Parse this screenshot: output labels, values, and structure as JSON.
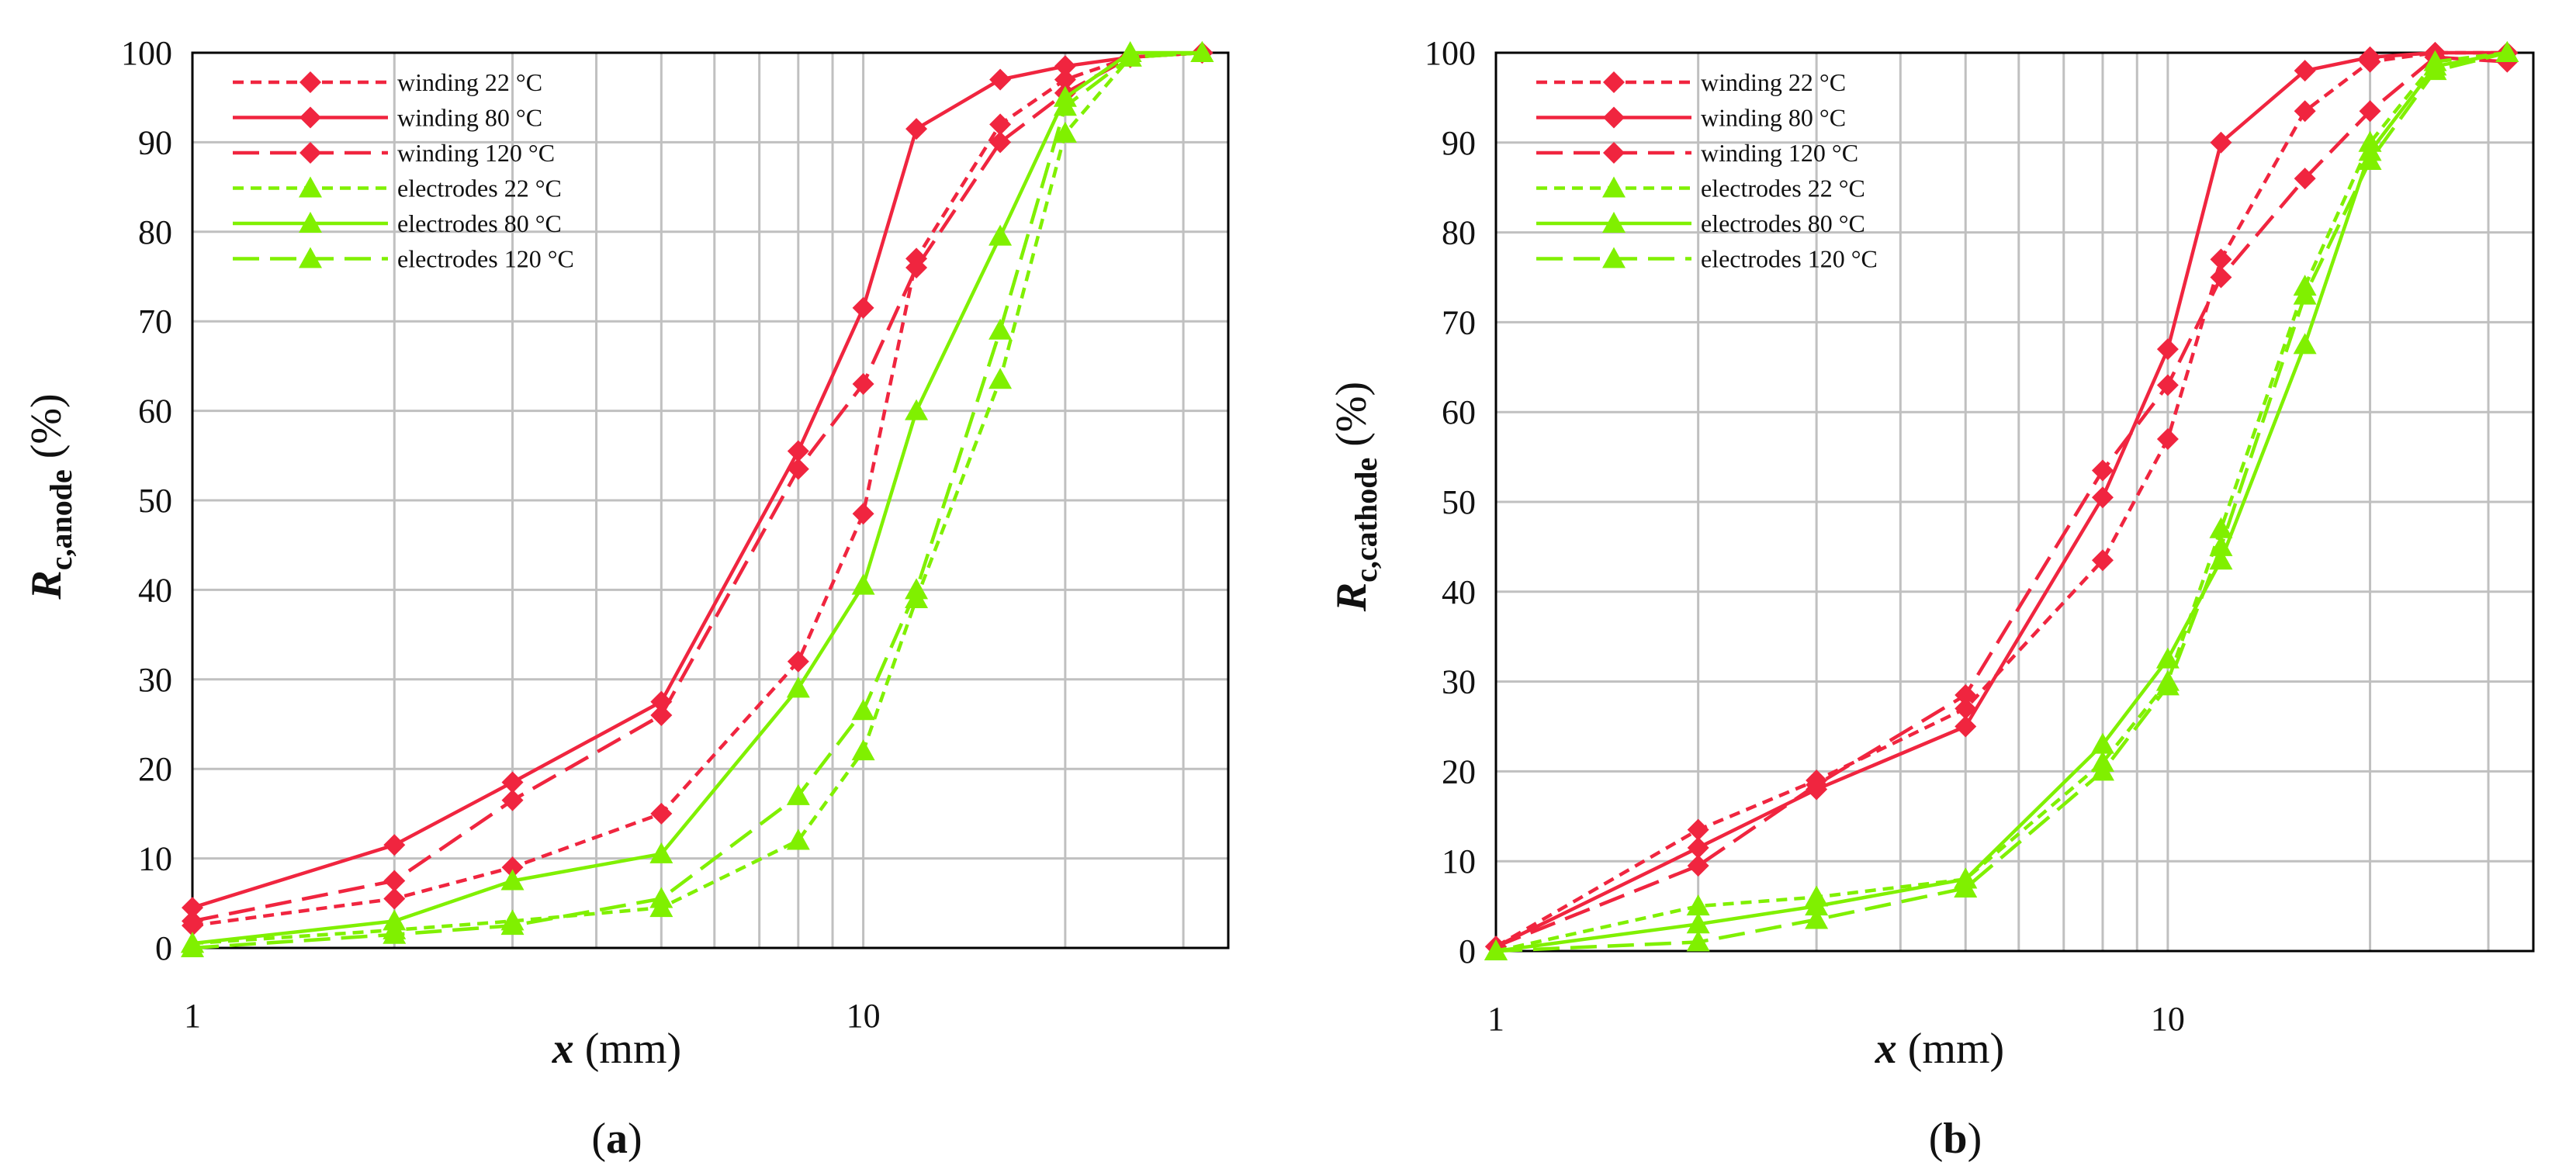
{
  "colors": {
    "winding": "#f0253f",
    "electrodes": "#80f000",
    "grid": "#c0c0c0",
    "axis": "#000000"
  },
  "chart_data": [
    {
      "type": "line",
      "panel_label": "(a)",
      "xlabel": {
        "symbol": "x",
        "unit": " (mm)"
      },
      "ylabel": {
        "symbol": "R",
        "subscript": "c,anode",
        "unit": " (%)"
      },
      "xscale": "log",
      "xlim": [
        1,
        35
      ],
      "ylim": [
        0,
        100
      ],
      "yticks": [
        "0",
        "10",
        "20",
        "30",
        "40",
        "50",
        "60",
        "70",
        "80",
        "90",
        "100"
      ],
      "xticks": [
        "1",
        "10"
      ],
      "legend_location": "top-left",
      "series": [
        {
          "name": "winding 22 °C",
          "color": "#f0253f",
          "dash": "short",
          "marker": "diamond",
          "x": [
            1,
            2,
            3,
            5,
            8,
            10,
            12,
            16,
            20,
            25,
            32
          ],
          "y": [
            2.5,
            5.5,
            9,
            15,
            32,
            48.5,
            77,
            92,
            97,
            99.5,
            100
          ]
        },
        {
          "name": "winding 80 °C",
          "color": "#f0253f",
          "dash": "solid",
          "marker": "diamond",
          "x": [
            1,
            2,
            3,
            5,
            8,
            10,
            12,
            16,
            20,
            25,
            32
          ],
          "y": [
            4.5,
            11.5,
            18.5,
            27.5,
            55.5,
            71.5,
            91.5,
            97,
            98.5,
            99.5,
            100
          ]
        },
        {
          "name": "winding 120 °C",
          "color": "#f0253f",
          "dash": "long",
          "marker": "diamond",
          "x": [
            1,
            2,
            3,
            5,
            8,
            10,
            12,
            16,
            20,
            25,
            32
          ],
          "y": [
            3,
            7.5,
            16.5,
            26,
            53.5,
            63,
            76,
            90,
            95.5,
            99.5,
            100
          ]
        },
        {
          "name": "electrodes 22 °C",
          "color": "#80f000",
          "dash": "short",
          "marker": "triangle",
          "x": [
            1,
            2,
            3,
            5,
            8,
            10,
            12,
            16,
            20,
            25,
            32
          ],
          "y": [
            0.5,
            2,
            3,
            4.5,
            12,
            22,
            39,
            63.5,
            91,
            99.5,
            100
          ]
        },
        {
          "name": "electrodes 80 °C",
          "color": "#80f000",
          "dash": "solid",
          "marker": "triangle",
          "x": [
            1,
            2,
            3,
            5,
            8,
            10,
            12,
            16,
            20,
            25,
            32
          ],
          "y": [
            0.5,
            3,
            7.5,
            10.5,
            29,
            40.5,
            60,
            79.5,
            95,
            100,
            100
          ]
        },
        {
          "name": "electrodes 120 °C",
          "color": "#80f000",
          "dash": "long",
          "marker": "triangle",
          "x": [
            1,
            2,
            3,
            5,
            8,
            10,
            12,
            16,
            20,
            25,
            32
          ],
          "y": [
            0,
            1.5,
            2.5,
            5.5,
            17,
            26.5,
            40,
            69,
            94,
            99.5,
            100
          ]
        }
      ]
    },
    {
      "type": "line",
      "panel_label": "(b)",
      "xlabel": {
        "symbol": "x",
        "unit": " (mm)"
      },
      "ylabel": {
        "symbol": "R",
        "subscript": "c,cathode",
        "unit": " (%)"
      },
      "xscale": "log",
      "xlim": [
        1,
        35
      ],
      "ylim": [
        0,
        100
      ],
      "yticks": [
        "0",
        "10",
        "20",
        "30",
        "40",
        "50",
        "60",
        "70",
        "80",
        "90",
        "100"
      ],
      "xticks": [
        "1",
        "10"
      ],
      "legend_location": "top-left",
      "series": [
        {
          "name": "winding 22 °C",
          "color": "#f0253f",
          "dash": "short",
          "marker": "diamond",
          "x": [
            1,
            2,
            3,
            5,
            8,
            10,
            12,
            16,
            20,
            25,
            32
          ],
          "y": [
            0.5,
            13.5,
            19,
            27,
            43.5,
            57,
            77,
            93.5,
            99,
            100,
            100
          ]
        },
        {
          "name": "winding 80 °C",
          "color": "#f0253f",
          "dash": "solid",
          "marker": "diamond",
          "x": [
            1,
            2,
            3,
            5,
            8,
            10,
            12,
            16,
            20,
            25,
            32
          ],
          "y": [
            0.5,
            11.5,
            18,
            25,
            50.5,
            67,
            90,
            98,
            99.5,
            100,
            100
          ]
        },
        {
          "name": "winding 120 °C",
          "color": "#f0253f",
          "dash": "long",
          "marker": "diamond",
          "x": [
            1,
            2,
            3,
            5,
            8,
            10,
            12,
            16,
            20,
            25,
            32
          ],
          "y": [
            0.5,
            9.5,
            18.5,
            28.5,
            53.5,
            63,
            75,
            86,
            93.5,
            99.5,
            99
          ]
        },
        {
          "name": "electrodes 22 °C",
          "color": "#80f000",
          "dash": "short",
          "marker": "triangle",
          "x": [
            1,
            2,
            3,
            5,
            8,
            10,
            12,
            16,
            20,
            25,
            32
          ],
          "y": [
            0,
            5,
            6,
            8,
            21,
            30,
            47,
            74,
            90,
            99,
            100
          ]
        },
        {
          "name": "electrodes 80 °C",
          "color": "#80f000",
          "dash": "solid",
          "marker": "triangle",
          "x": [
            1,
            2,
            3,
            5,
            8,
            10,
            12,
            16,
            20,
            25,
            32
          ],
          "y": [
            0,
            3,
            5,
            8,
            23,
            32.5,
            43.5,
            67.5,
            89,
            98.5,
            100
          ]
        },
        {
          "name": "electrodes 120 °C",
          "color": "#80f000",
          "dash": "long",
          "marker": "triangle",
          "x": [
            1,
            2,
            3,
            5,
            8,
            10,
            12,
            16,
            20,
            25,
            32
          ],
          "y": [
            0,
            1,
            3.5,
            7,
            20,
            29.5,
            45,
            73,
            88,
            98,
            100
          ]
        }
      ]
    }
  ]
}
